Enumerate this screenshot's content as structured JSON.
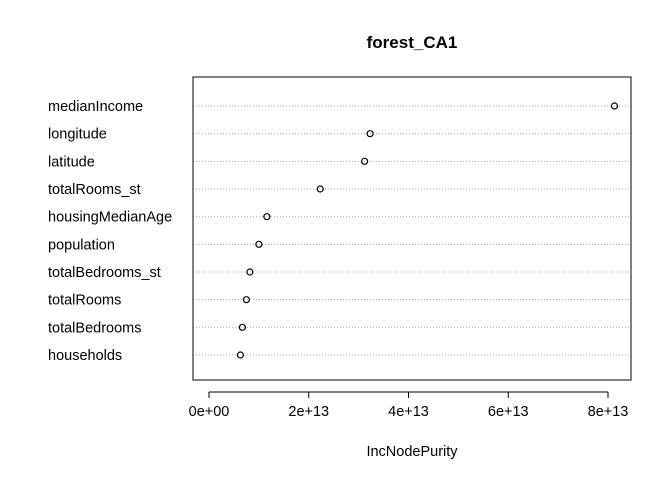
{
  "chart_data": {
    "type": "scatter",
    "title": "forest_CA1",
    "xlabel": "IncNodePurity",
    "ylabel": "",
    "xlim": [
      -4000000000000.0,
      84000000000000.0
    ],
    "xticks": [
      0,
      20000000000000.0,
      40000000000000.0,
      60000000000000.0,
      80000000000000.0
    ],
    "xtick_labels": [
      "0e+00",
      "2e+13",
      "4e+13",
      "6e+13",
      "8e+13"
    ],
    "grid": "horizontal dotted",
    "categories": [
      "medianIncome",
      "longitude",
      "latitude",
      "totalRooms_st",
      "housingMedianAge",
      "population",
      "totalBedrooms_st",
      "totalRooms",
      "totalBedrooms",
      "households"
    ],
    "values": [
      81300000000000.0,
      32300000000000.0,
      31200000000000.0,
      22300000000000.0,
      11600000000000.0,
      10000000000000.0,
      8200000000000.0,
      7500000000000.0,
      6700000000000.0,
      6300000000000.0
    ]
  }
}
